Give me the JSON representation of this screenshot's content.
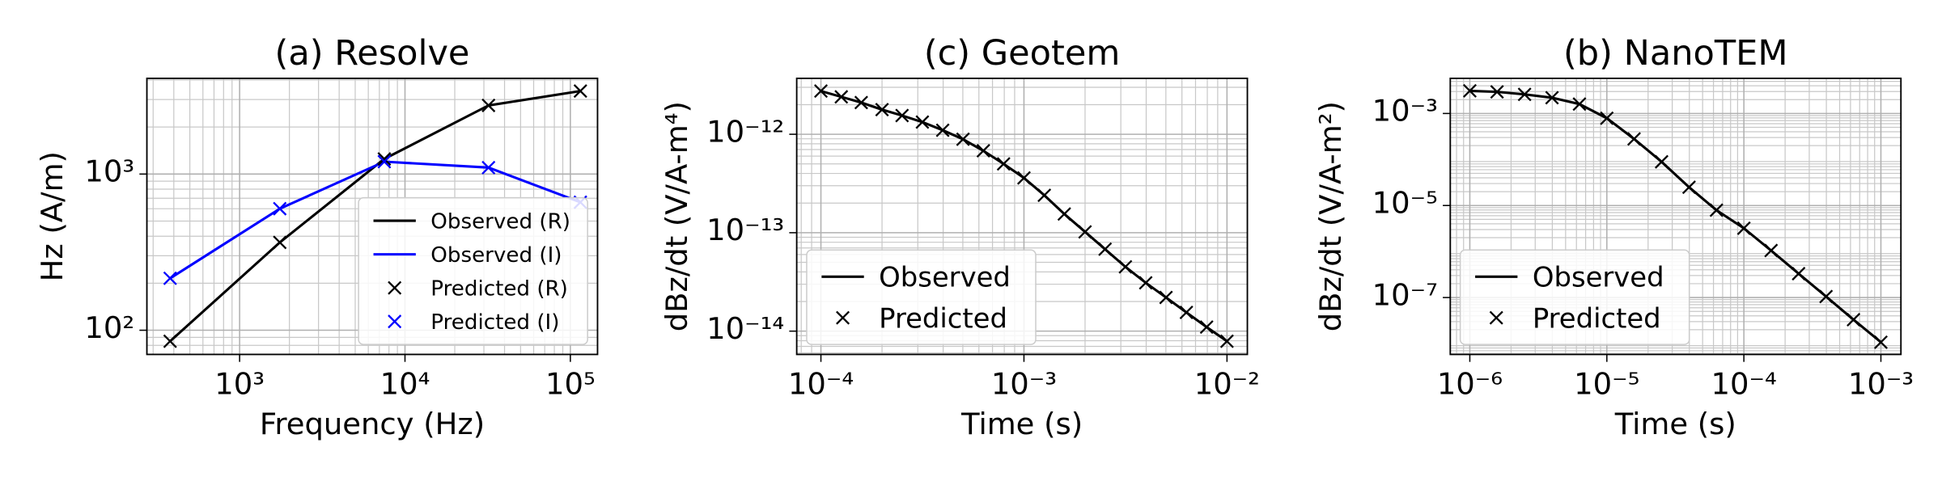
{
  "chart_data": [
    {
      "type": "line",
      "title": "(a) Resolve",
      "xlabel": "Frequency (Hz)",
      "ylabel": "Hz (A/m)",
      "xscale": "log",
      "yscale": "log",
      "grid": true,
      "minor_grid": true,
      "legend": "lower right",
      "x": [
        380,
        1750,
        7500,
        32000,
        115000
      ],
      "xlim": [
        275,
        146000
      ],
      "ylim": [
        70,
        4100
      ],
      "xticks": [
        {
          "value": 1000,
          "label": "10³"
        },
        {
          "value": 10000,
          "label": "10⁴"
        },
        {
          "value": 100000,
          "label": "10⁵"
        }
      ],
      "yticks": [
        {
          "value": 100,
          "label": "10²"
        },
        {
          "value": 1000,
          "label": "10³"
        }
      ],
      "series": [
        {
          "name": "Observed (R)",
          "color": "#000000",
          "style": "line",
          "values": [
            85,
            365,
            1250,
            2750,
            3400
          ]
        },
        {
          "name": "Observed (I)",
          "color": "#0000ff",
          "style": "line",
          "values": [
            215,
            600,
            1200,
            1100,
            660
          ]
        },
        {
          "name": "Predicted (R)",
          "color": "#000000",
          "style": "marker",
          "values": [
            85,
            365,
            1250,
            2750,
            3400
          ]
        },
        {
          "name": "Predicted (I)",
          "color": "#0000ff",
          "style": "marker",
          "values": [
            215,
            600,
            1200,
            1100,
            660
          ]
        }
      ]
    },
    {
      "type": "line",
      "title": "(c) Geotem",
      "xlabel": "Time (s)",
      "ylabel": "dBz/dt (V/A-m⁴)",
      "xscale": "log",
      "yscale": "log",
      "grid": true,
      "minor_grid": true,
      "legend": "lower left",
      "x": [
        0.0001,
        0.000126,
        0.000158,
        0.0002,
        0.000251,
        0.000316,
        0.000398,
        0.000501,
        0.000631,
        0.000794,
        0.001,
        0.00126,
        0.00158,
        0.002,
        0.00251,
        0.00316,
        0.00398,
        0.00501,
        0.00631,
        0.00794,
        0.01
      ],
      "xlim": [
        7.6e-05,
        0.0126
      ],
      "ylim": [
        5.8e-15,
        3.7e-12
      ],
      "xticks": [
        {
          "value": 0.0001,
          "label": "10⁻⁴"
        },
        {
          "value": 0.001,
          "label": "10⁻³"
        },
        {
          "value": 0.01,
          "label": "10⁻²"
        }
      ],
      "yticks": [
        {
          "value": 1e-14,
          "label": "10⁻¹⁴"
        },
        {
          "value": 1e-13,
          "label": "10⁻¹³"
        },
        {
          "value": 1e-12,
          "label": "10⁻¹²"
        }
      ],
      "series": [
        {
          "name": "Observed",
          "color": "#000000",
          "style": "line",
          "values": [
            2.75e-12,
            2.4e-12,
            2.1e-12,
            1.78e-12,
            1.55e-12,
            1.33e-12,
            1.1e-12,
            8.9e-13,
            6.8e-13,
            5e-13,
            3.6e-13,
            2.4e-13,
            1.55e-13,
            1.02e-13,
            6.8e-14,
            4.5e-14,
            3.1e-14,
            2.2e-14,
            1.55e-14,
            1.1e-14,
            7.9e-15
          ]
        },
        {
          "name": "Predicted",
          "color": "#000000",
          "style": "marker",
          "values": [
            2.75e-12,
            2.4e-12,
            2.1e-12,
            1.78e-12,
            1.55e-12,
            1.33e-12,
            1.1e-12,
            8.9e-13,
            6.8e-13,
            5e-13,
            3.6e-13,
            2.4e-13,
            1.55e-13,
            1.02e-13,
            6.8e-14,
            4.5e-14,
            3.1e-14,
            2.2e-14,
            1.55e-14,
            1.1e-14,
            7.9e-15
          ]
        }
      ]
    },
    {
      "type": "line",
      "title": "(b) NanoTEM",
      "xlabel": "Time (s)",
      "ylabel": "dBz/dt (V/A-m²)",
      "xscale": "log",
      "yscale": "log",
      "grid": true,
      "minor_grid": true,
      "legend": "lower left",
      "x": [
        1e-06,
        1.58e-06,
        2.51e-06,
        3.98e-06,
        6.31e-06,
        1e-05,
        1.58e-05,
        2.51e-05,
        3.98e-05,
        6.31e-05,
        0.0001,
        0.000158,
        0.000251,
        0.000398,
        0.000631,
        0.001
      ],
      "xlim": [
        7.2e-07,
        0.0014
      ],
      "ylim": [
        5.8e-09,
        0.0058
      ],
      "xticks": [
        {
          "value": 1e-06,
          "label": "10⁻⁶"
        },
        {
          "value": 1e-05,
          "label": "10⁻⁵"
        },
        {
          "value": 0.0001,
          "label": "10⁻⁴"
        },
        {
          "value": 0.001,
          "label": "10⁻³"
        }
      ],
      "yticks": [
        {
          "value": 1e-07,
          "label": "10⁻⁷"
        },
        {
          "value": 1e-05,
          "label": "10⁻⁵"
        },
        {
          "value": 0.001,
          "label": "10⁻³"
        }
      ],
      "series": [
        {
          "name": "Observed",
          "color": "#000000",
          "style": "line",
          "values": [
            0.0031,
            0.00295,
            0.0026,
            0.0022,
            0.0016,
            0.00079,
            0.00028,
            8.9e-05,
            2.5e-05,
            7.9e-06,
            3.2e-06,
            1.05e-06,
            3.3e-07,
            1.05e-07,
            3.3e-08,
            1.07e-08
          ]
        },
        {
          "name": "Predicted",
          "color": "#000000",
          "style": "marker",
          "values": [
            0.0031,
            0.00295,
            0.0026,
            0.0022,
            0.0016,
            0.00079,
            0.00028,
            8.9e-05,
            2.5e-05,
            7.9e-06,
            3.2e-06,
            1.05e-06,
            3.3e-07,
            1.05e-07,
            3.3e-08,
            1.07e-08
          ]
        }
      ]
    }
  ]
}
